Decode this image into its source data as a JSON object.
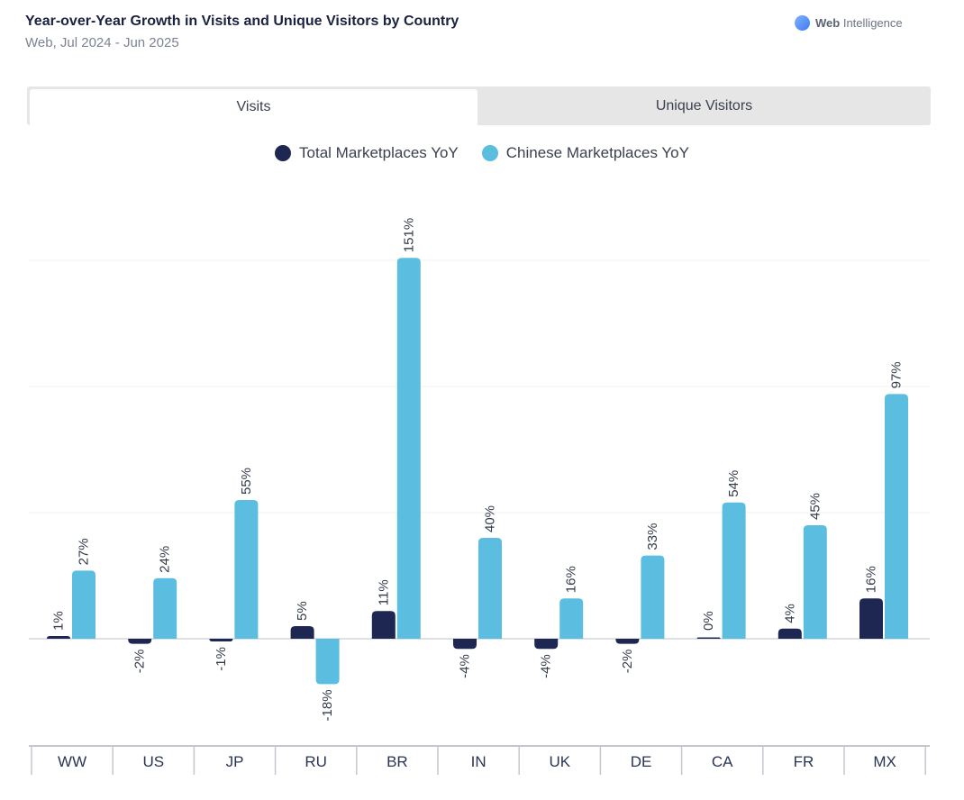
{
  "header": {
    "title": "Year-over-Year Growth in Visits and Unique Visitors by Country",
    "subtitle": "Web, Jul 2024 - Jun 2025",
    "brand_bold": "Web",
    "brand_rest": "Intelligence",
    "brand_icon": "globe-logo-icon"
  },
  "tabs": [
    {
      "label": "Visits",
      "active": true
    },
    {
      "label": "Unique Visitors",
      "active": false
    }
  ],
  "chart_data": {
    "type": "bar",
    "title": "",
    "xlabel": "",
    "ylabel": "",
    "ylim": [
      -43,
      179
    ],
    "grid": true,
    "legend_position": "top-center",
    "categories": [
      "WW",
      "US",
      "JP",
      "RU",
      "BR",
      "IN",
      "UK",
      "DE",
      "CA",
      "FR",
      "MX"
    ],
    "series": [
      {
        "name": "Total Marketplaces YoY",
        "color": "#1e2752",
        "values": [
          1,
          -2,
          -1,
          5,
          11,
          -4,
          -4,
          -2,
          0,
          4,
          16
        ]
      },
      {
        "name": "Chinese Marketplaces YoY",
        "color": "#5bbde0",
        "values": [
          27,
          24,
          55,
          -18,
          151,
          40,
          16,
          33,
          54,
          45,
          97
        ]
      }
    ],
    "data_label_suffix": "%"
  }
}
